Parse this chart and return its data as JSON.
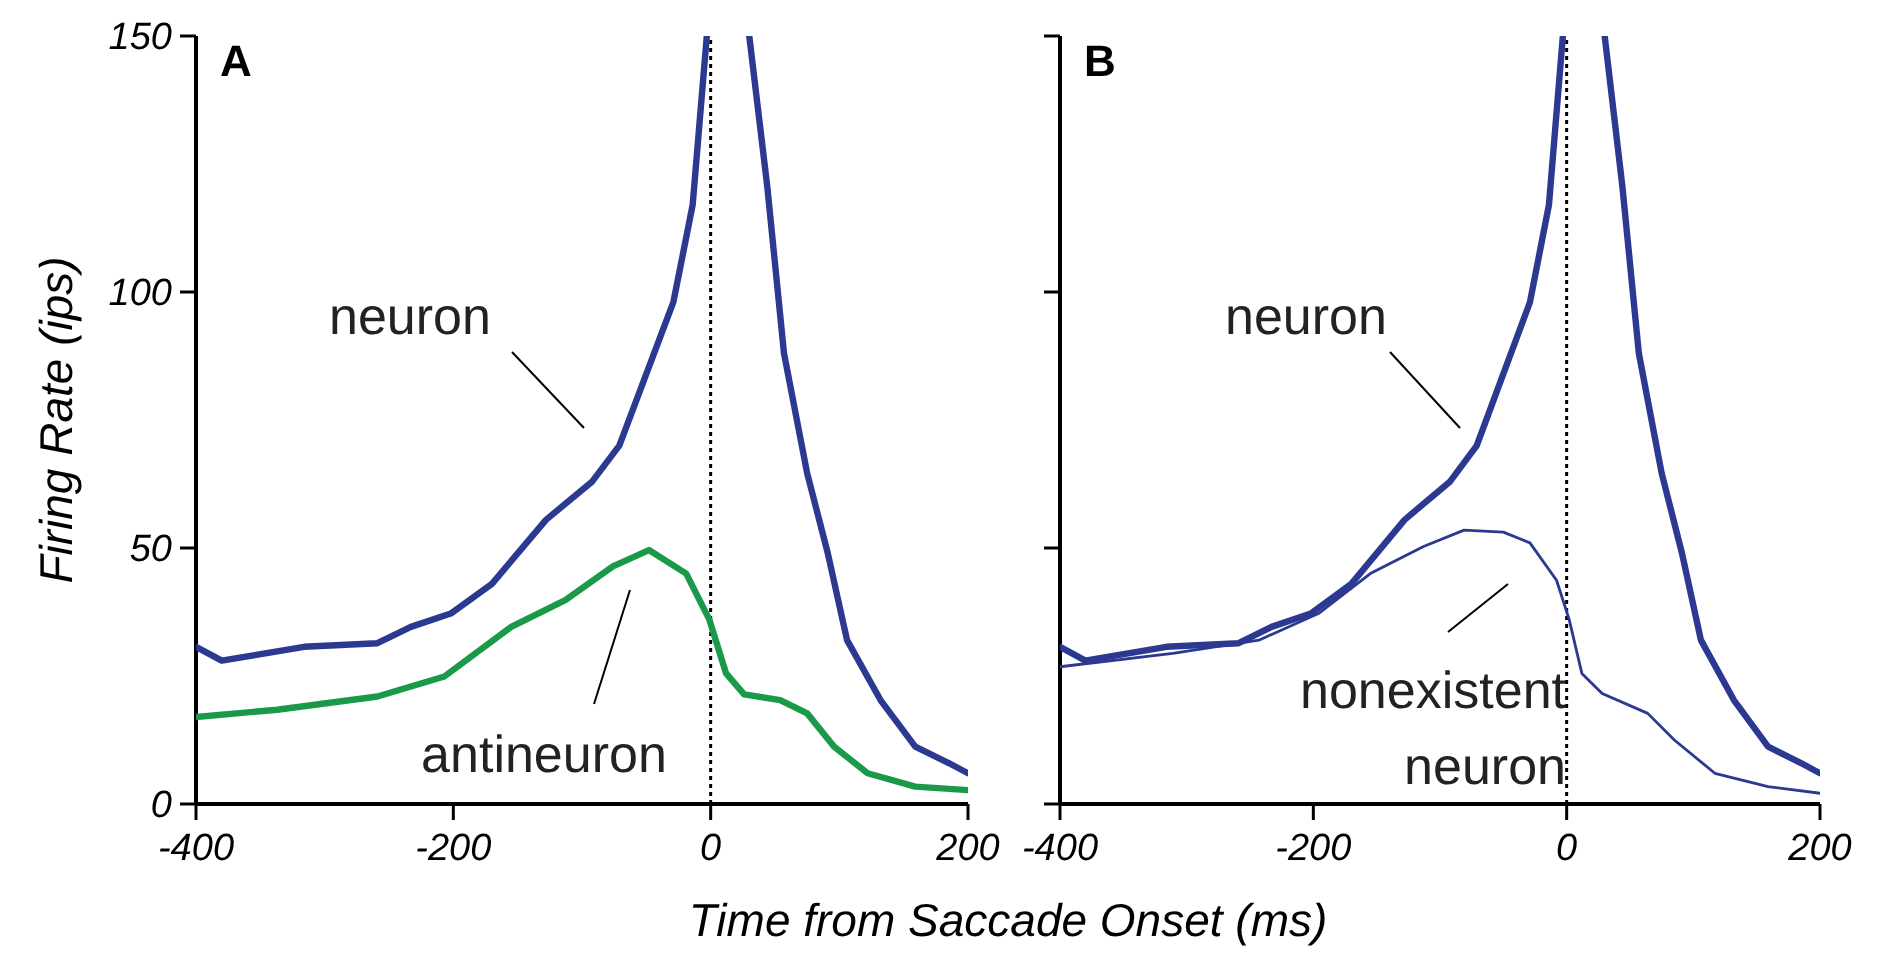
{
  "chart_data": [
    {
      "type": "line",
      "title": "A",
      "xlabel": "Time from Saccade Onset (ms)",
      "ylabel": "Firing Rate (ips)",
      "xlim": [
        -400,
        200
      ],
      "ylim": [
        0,
        150
      ],
      "xticks": [
        -400,
        -200,
        0,
        200
      ],
      "yticks": [
        0,
        50,
        100,
        150
      ],
      "grid": false,
      "ref_lines": [
        {
          "axis": "x",
          "value": 0,
          "line_style": "dotted",
          "color": "#000000"
        }
      ],
      "series": [
        {
          "name": "neuron",
          "color": "#2b3990",
          "x": [
            -400,
            -380,
            -316,
            -259,
            -233,
            -202,
            -170,
            -128,
            -92,
            -71,
            -50,
            -29,
            -14,
            -3,
            0,
            30,
            44,
            57,
            75,
            91,
            106,
            132,
            159,
            185,
            200
          ],
          "values": [
            30.7,
            28,
            30.7,
            31.4,
            34.6,
            37.2,
            43,
            55.5,
            63,
            70,
            84,
            98,
            117,
            150,
            null,
            150,
            120.6,
            88,
            64.6,
            49,
            32,
            20.3,
            11.2,
            8,
            6
          ]
        },
        {
          "name": "antineuron",
          "color": "#1a9a48",
          "x": [
            -400,
            -337,
            -259,
            -207,
            -155,
            -113,
            -76,
            -48,
            -19,
            -1,
            12,
            26,
            54,
            75,
            96,
            122,
            159,
            200
          ],
          "values": [
            17,
            18.4,
            21,
            24.9,
            34.6,
            39.8,
            46.4,
            49.6,
            45,
            36,
            25.5,
            21.4,
            20.3,
            17.7,
            11.2,
            6,
            3.4,
            2.7
          ]
        }
      ]
    },
    {
      "type": "line",
      "title": "B",
      "xlim": [
        -400,
        200
      ],
      "ylim": [
        0,
        150
      ],
      "xticks": [
        -400,
        -200,
        0,
        200
      ],
      "yticks": [
        0,
        50,
        100,
        150
      ],
      "tick_labels": "x",
      "grid": false,
      "ref_lines": [
        {
          "axis": "x",
          "value": 0,
          "line_style": "dotted",
          "color": "#000000"
        }
      ],
      "series": [
        {
          "name": "neuron",
          "color": "#2b3990",
          "x": [
            -400,
            -380,
            -316,
            -259,
            -233,
            -202,
            -170,
            -128,
            -92,
            -71,
            -50,
            -29,
            -14,
            -3,
            0,
            30,
            44,
            57,
            75,
            91,
            106,
            132,
            159,
            185,
            200
          ],
          "values": [
            30.7,
            28,
            30.7,
            31.4,
            34.6,
            37.2,
            43,
            55.5,
            63,
            70,
            84,
            98,
            117,
            150,
            null,
            150,
            120.6,
            88,
            64.6,
            49,
            32,
            20.3,
            11.2,
            8,
            6
          ]
        },
        {
          "name": "nonexistent neuron",
          "color": "#2b3990",
          "x": [
            -400,
            -311,
            -243,
            -196,
            -155,
            -113,
            -81,
            -50,
            -29,
            -8,
            2,
            12,
            28,
            64,
            85,
            117,
            159,
            200
          ],
          "values": [
            26.8,
            29.4,
            32,
            37.2,
            45,
            50.3,
            53.5,
            53.1,
            51,
            43.7,
            36,
            25.5,
            21.6,
            17.7,
            12.5,
            6,
            3.4,
            2.1
          ]
        }
      ]
    }
  ]
}
